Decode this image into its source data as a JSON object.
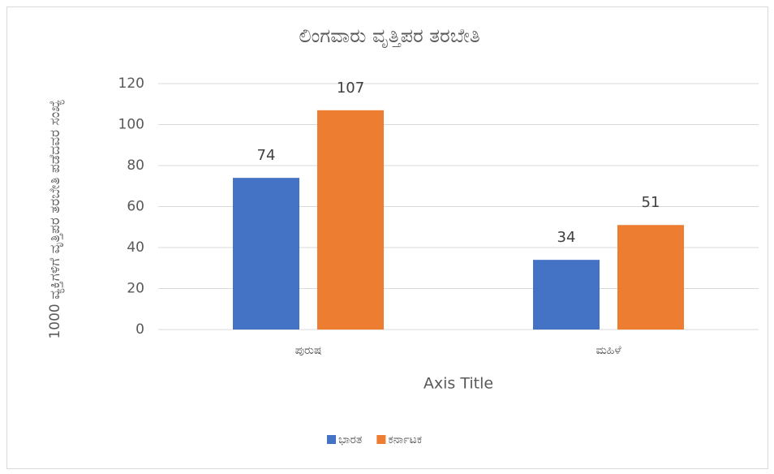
{
  "chart_data": {
    "type": "bar",
    "title": "ಲಿಂಗವಾರು ವೃತ್ತಿಪರ ತರಬೇತಿ",
    "y_label": "1000 ವ್ಯಕ್ತಿಗಳಿಗೆ ವೃತ್ತಿಪರ ತರಬೇತಿ ಪಡೆದವರ ಸಂಖ್ಯೆ",
    "x_label": "Axis Title",
    "categories": [
      "ಪುರುಷ",
      "ಮಹಿಳೆ"
    ],
    "series": [
      {
        "name": "ಭಾರತ",
        "color": "#4472c4",
        "values": [
          74,
          34
        ]
      },
      {
        "name": "ಕರ್ನಾಟಕ",
        "color": "#ed7d31",
        "values": [
          107,
          51
        ]
      }
    ],
    "ylim": [
      0,
      120
    ],
    "yticks": [
      0,
      20,
      40,
      60,
      80,
      100,
      120
    ],
    "grid": true,
    "legend": "bottom",
    "data_labels": true
  }
}
